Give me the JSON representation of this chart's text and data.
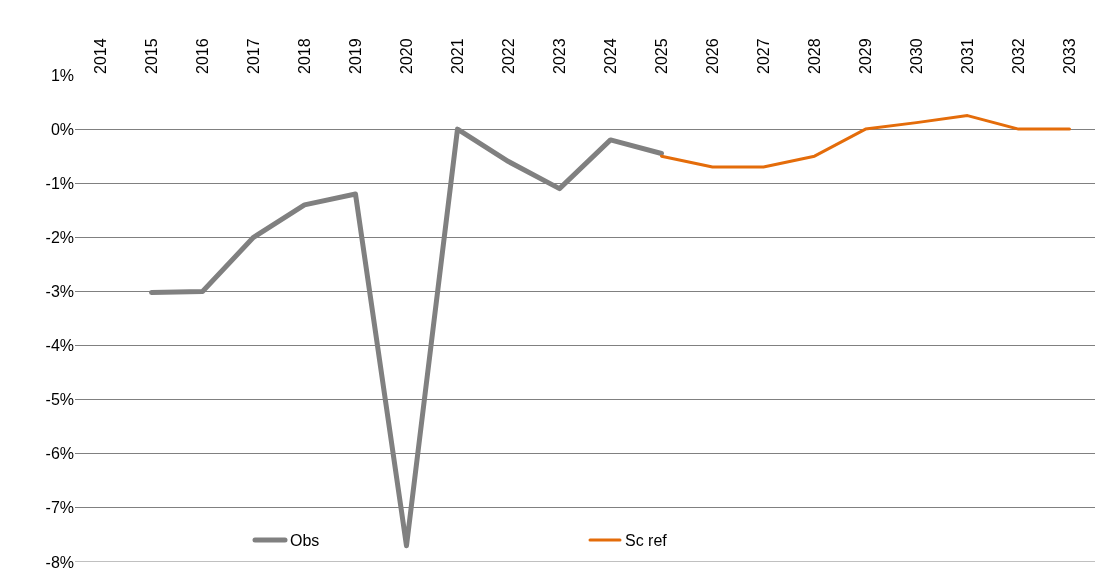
{
  "chart_data": {
    "type": "line",
    "categories": [
      "2014",
      "2015",
      "2016",
      "2017",
      "2018",
      "2019",
      "2020",
      "2021",
      "2022",
      "2023",
      "2024",
      "2025",
      "2026",
      "2027",
      "2028",
      "2029",
      "2030",
      "2031",
      "2032",
      "2033"
    ],
    "series": [
      {
        "name": "Obs",
        "color": "#808080",
        "values": [
          null,
          -3.02,
          -3.0,
          -2.0,
          -1.4,
          -1.2,
          -7.7,
          0.0,
          -0.6,
          -1.1,
          -0.2,
          -0.45,
          null,
          null,
          null,
          null,
          null,
          null,
          null,
          null
        ]
      },
      {
        "name": "Sc ref",
        "color": "#e46c0a",
        "values": [
          null,
          null,
          null,
          null,
          null,
          null,
          null,
          null,
          null,
          null,
          null,
          -0.5,
          -0.7,
          -0.7,
          -0.5,
          0.0,
          0.12,
          0.25,
          0.0,
          0.0
        ]
      }
    ],
    "ylim": [
      -8,
      1
    ],
    "yticks": [
      {
        "value": -8,
        "label": "-8%"
      },
      {
        "value": -7,
        "label": "-7%"
      },
      {
        "value": -6,
        "label": "-6%"
      },
      {
        "value": -5,
        "label": "-5%"
      },
      {
        "value": -4,
        "label": "-4%"
      },
      {
        "value": -3,
        "label": "-3%"
      },
      {
        "value": -2,
        "label": "-2%"
      },
      {
        "value": -1,
        "label": "-1%"
      },
      {
        "value": 0,
        "label": "0%"
      },
      {
        "value": 1,
        "label": "1%"
      }
    ],
    "grid": "y",
    "legend": "bottom",
    "marker": "none",
    "line_style": "solid"
  }
}
